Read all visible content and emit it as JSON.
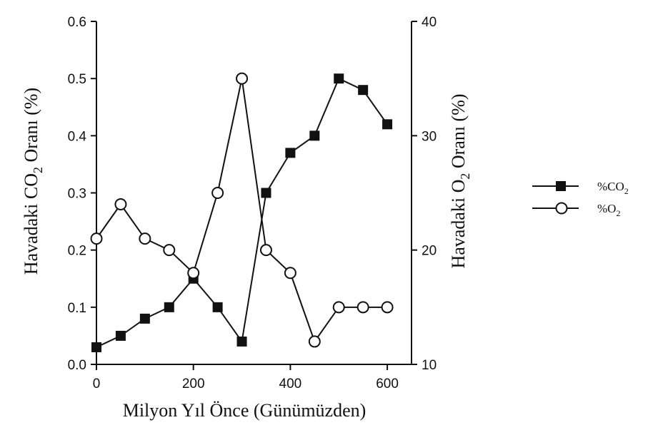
{
  "chart_data": {
    "type": "line",
    "x": [
      0,
      50,
      100,
      150,
      200,
      250,
      300,
      350,
      400,
      450,
      500,
      550,
      600
    ],
    "xlim": [
      0,
      650
    ],
    "xticks": [
      0,
      200,
      400,
      600
    ],
    "xlabel": "Milyon Yıl Önce (Günümüzden)",
    "ylabel_left": {
      "pre": "Havadaki CO",
      "sub": "2",
      "post": " Oranı (%)"
    },
    "ylabel_right": {
      "pre": "Havadaki O",
      "sub": "2",
      "post": " Oranı (%)"
    },
    "ylim_left": [
      0,
      0.6
    ],
    "yticks_left": [
      "0.0",
      "0.1",
      "0.2",
      "0.3",
      "0.4",
      "0.5",
      "0.6"
    ],
    "ylim_right": [
      10,
      40
    ],
    "yticks_right": [
      "10",
      "20",
      "30",
      "40"
    ],
    "series": [
      {
        "name": "%CO2",
        "axis": "left",
        "marker": "filled-square",
        "values": [
          0.03,
          0.05,
          0.08,
          0.1,
          0.15,
          0.1,
          0.04,
          0.3,
          0.37,
          0.4,
          0.5,
          0.48,
          0.42
        ]
      },
      {
        "name": "%O2",
        "axis": "right",
        "marker": "open-circle",
        "values": [
          21,
          24,
          21,
          20,
          18,
          25,
          35,
          20,
          18,
          12,
          15,
          15,
          15
        ]
      }
    ],
    "legend": [
      {
        "pre": "%CO",
        "sub": "2"
      },
      {
        "pre": "%O",
        "sub": "2"
      }
    ],
    "legend_position": "right"
  }
}
